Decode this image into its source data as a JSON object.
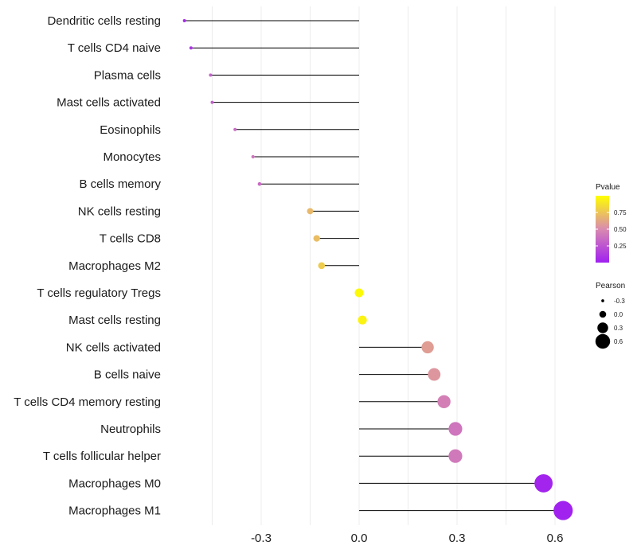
{
  "chart_data": {
    "type": "lollipop",
    "categories": [
      "Dendritic cells resting",
      "T cells CD4 naive",
      "Plasma cells",
      "Mast cells activated",
      "Eosinophils",
      "Monocytes",
      "B cells memory",
      "NK cells resting",
      "T cells CD8",
      "Macrophages M2",
      "T cells regulatory  Tregs",
      "Mast cells resting",
      "NK cells activated",
      "B cells naive",
      "T cells CD4 memory resting",
      "Neutrophils",
      "T cells follicular helper",
      "Macrophages M0",
      "Macrophages M1"
    ],
    "values": [
      -0.535,
      -0.515,
      -0.455,
      -0.45,
      -0.38,
      -0.325,
      -0.305,
      -0.15,
      -0.13,
      -0.115,
      0.0,
      0.01,
      0.21,
      0.23,
      0.26,
      0.295,
      0.295,
      0.565,
      0.625
    ],
    "pvalues": [
      0.05,
      0.1,
      0.3,
      0.3,
      0.35,
      0.4,
      0.35,
      0.7,
      0.72,
      0.78,
      0.98,
      0.95,
      0.58,
      0.55,
      0.45,
      0.4,
      0.42,
      0.02,
      0.01
    ],
    "xlim": [
      -0.6,
      0.68
    ],
    "x_ticks": [
      -0.3,
      0.0,
      0.3,
      0.6
    ],
    "x_tick_labels": [
      "-0.3",
      "0.0",
      "0.3",
      "0.6"
    ],
    "grid": true,
    "legend_color": {
      "title": "Pvalue",
      "ticks": [
        0.25,
        0.5,
        0.75
      ],
      "tick_labels": [
        "0.25",
        "0.50",
        "0.75"
      ],
      "range": [
        0.0,
        1.0
      ],
      "low_color": "#a020f0",
      "mid_color": "#d98ab0",
      "high_color": "#ffff00"
    },
    "legend_size": {
      "title": "Pearson",
      "values": [
        -0.3,
        0.0,
        0.3,
        0.6
      ],
      "labels": [
        "-0.3",
        "0.0",
        "0.3",
        "0.6"
      ]
    },
    "stem_color": "#000000"
  }
}
